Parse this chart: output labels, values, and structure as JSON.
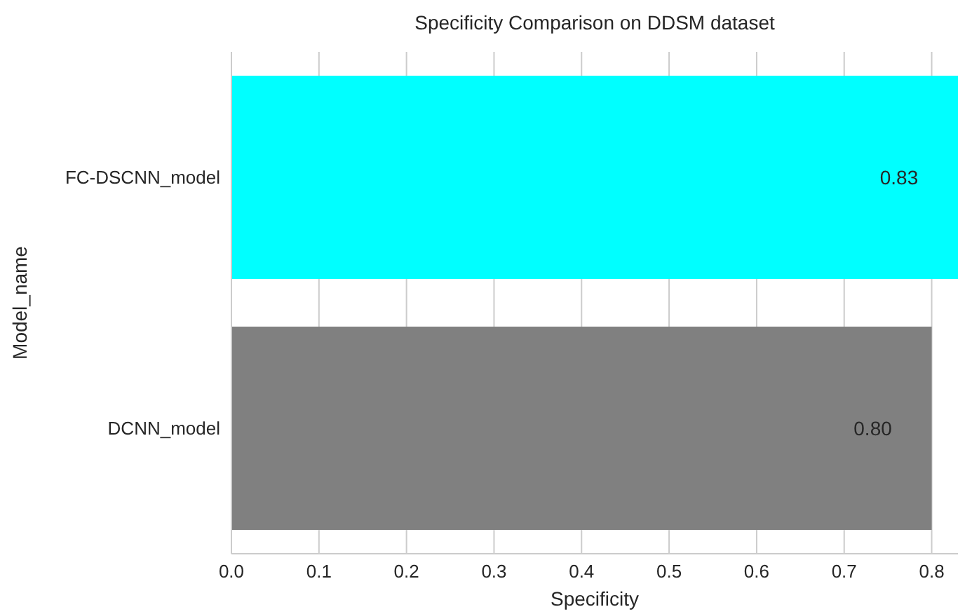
{
  "chart_data": {
    "type": "bar",
    "orientation": "horizontal",
    "title": "Specificity Comparison on DDSM dataset",
    "xlabel": "Specificity",
    "ylabel": "Model_name",
    "categories": [
      "FC-DSCNN_model",
      "DCNN_model"
    ],
    "values": [
      0.83,
      0.8
    ],
    "colors": [
      "#00ffff",
      "#808080"
    ],
    "value_labels": [
      "0.83",
      "0.80"
    ],
    "xlim": [
      0,
      0.83
    ],
    "xticks": [
      {
        "value": 0,
        "label": "0.0"
      },
      {
        "value": 0.1,
        "label": "0.1"
      },
      {
        "value": 0.2,
        "label": "0.2"
      },
      {
        "value": 0.3,
        "label": "0.3"
      },
      {
        "value": 0.4,
        "label": "0.4"
      },
      {
        "value": 0.5,
        "label": "0.5"
      },
      {
        "value": 0.6,
        "label": "0.6"
      },
      {
        "value": 0.7,
        "label": "0.7"
      },
      {
        "value": 0.8,
        "label": "0.8"
      }
    ],
    "grid": "x"
  }
}
